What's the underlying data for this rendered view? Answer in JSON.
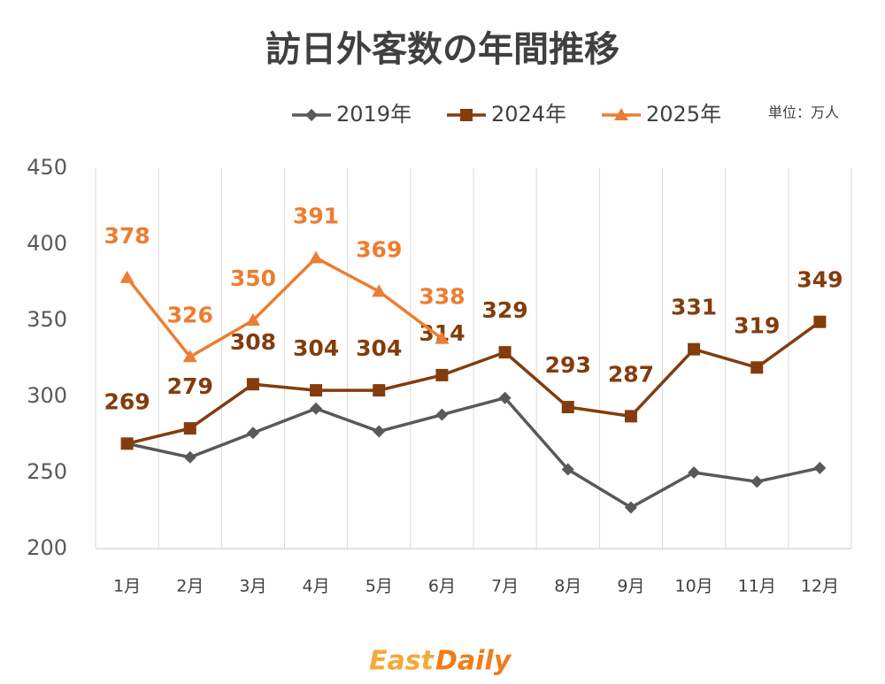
{
  "chart_data": {
    "type": "line",
    "title": "訪日外客数の年間推移",
    "unit_note": "単位：万人",
    "categories": [
      "1月",
      "2月",
      "3月",
      "4月",
      "5月",
      "6月",
      "7月",
      "8月",
      "9月",
      "10月",
      "11月",
      "12月"
    ],
    "series": [
      {
        "name": "2019年",
        "color": "#595959",
        "marker": "diamond",
        "data_labels": false,
        "values": [
          269,
          260,
          276,
          292,
          277,
          288,
          299,
          252,
          227,
          250,
          244,
          253
        ]
      },
      {
        "name": "2024年",
        "color": "#843c0c",
        "marker": "square",
        "data_labels": true,
        "values": [
          269,
          279,
          308,
          304,
          304,
          314,
          329,
          293,
          287,
          331,
          319,
          349
        ]
      },
      {
        "name": "2025年",
        "color": "#ed7d31",
        "marker": "triangle",
        "data_labels": true,
        "values": [
          378,
          326,
          350,
          391,
          369,
          338,
          null,
          null,
          null,
          null,
          null,
          null
        ]
      }
    ],
    "ylim": [
      200,
      450
    ],
    "yticks": [
      200,
      250,
      300,
      350,
      400,
      450
    ],
    "grid": true,
    "logo": {
      "first": "East",
      "second": "Daily"
    }
  }
}
